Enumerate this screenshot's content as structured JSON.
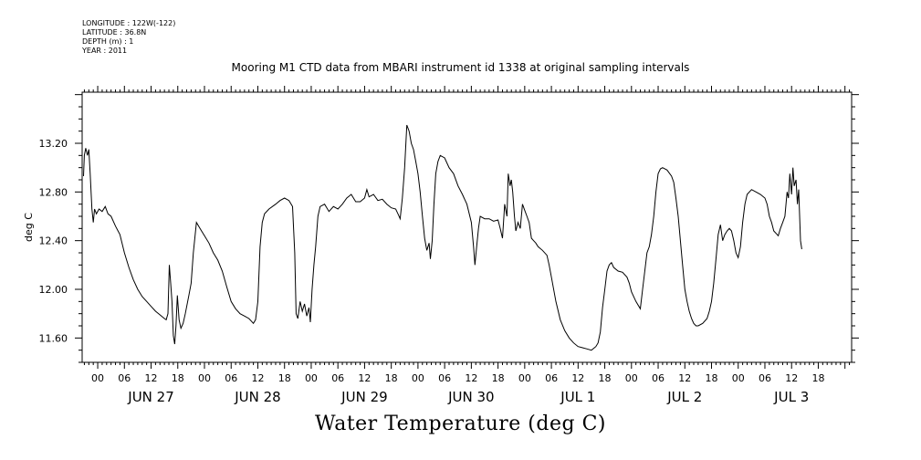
{
  "meta": {
    "longitude": "LONGITUDE : 122W(-122)",
    "latitude": "LATITUDE : 36.8N",
    "depth": "DEPTH (m) : 1",
    "year": "YEAR : 2011"
  },
  "chart_data": {
    "type": "line",
    "title": "Mooring M1 CTD data from MBARI instrument id 1338 at original sampling intervals",
    "bottom_title": "Water Temperature (deg C)",
    "ylabel": "deg C",
    "xlabel": "",
    "ylim": [
      11.4,
      13.62
    ],
    "y_ticks": [
      "11.60",
      "12.00",
      "12.40",
      "12.80",
      "13.20"
    ],
    "x_start_hours": -3.5,
    "x_end_hours": 169.5,
    "hour_labels": [
      "00",
      "06",
      "12",
      "18",
      "00",
      "06",
      "12",
      "18",
      "00",
      "06",
      "12",
      "18",
      "00",
      "06",
      "12",
      "18",
      "00",
      "06",
      "12",
      "18",
      "00",
      "06",
      "12",
      "18",
      "00",
      "06",
      "12",
      "18"
    ],
    "day_labels": [
      "JUN 27",
      "JUN 28",
      "JUN 29",
      "JUN 30",
      "JUL  1",
      "JUL  2",
      "JUL  3"
    ],
    "grid": false,
    "series": [
      {
        "color": "#000000",
        "points": [
          [
            -3.2,
            12.93
          ],
          [
            -3.0,
            13.1
          ],
          [
            -2.7,
            13.16
          ],
          [
            -2.3,
            13.1
          ],
          [
            -2.0,
            13.15
          ],
          [
            -1.7,
            12.95
          ],
          [
            -1.3,
            12.66
          ],
          [
            -1.0,
            12.55
          ],
          [
            -0.7,
            12.66
          ],
          [
            -0.3,
            12.62
          ],
          [
            0.3,
            12.66
          ],
          [
            1.0,
            12.64
          ],
          [
            1.7,
            12.68
          ],
          [
            2.3,
            12.62
          ],
          [
            3.0,
            12.6
          ],
          [
            4.0,
            12.52
          ],
          [
            5.0,
            12.45
          ],
          [
            6.0,
            12.3
          ],
          [
            7.0,
            12.18
          ],
          [
            8.0,
            12.08
          ],
          [
            9.0,
            12.0
          ],
          [
            10.0,
            11.94
          ],
          [
            11.0,
            11.9
          ],
          [
            12.0,
            11.86
          ],
          [
            13.0,
            11.82
          ],
          [
            14.0,
            11.79
          ],
          [
            15.0,
            11.76
          ],
          [
            15.4,
            11.75
          ],
          [
            15.8,
            11.8
          ],
          [
            16.1,
            12.2
          ],
          [
            16.4,
            12.05
          ],
          [
            16.7,
            11.9
          ],
          [
            17.0,
            11.62
          ],
          [
            17.3,
            11.55
          ],
          [
            17.6,
            11.7
          ],
          [
            17.9,
            11.95
          ],
          [
            18.3,
            11.75
          ],
          [
            18.7,
            11.68
          ],
          [
            19.2,
            11.72
          ],
          [
            19.7,
            11.8
          ],
          [
            20.5,
            11.95
          ],
          [
            21.0,
            12.05
          ],
          [
            21.5,
            12.3
          ],
          [
            22.2,
            12.55
          ],
          [
            23.0,
            12.5
          ],
          [
            24.0,
            12.44
          ],
          [
            25.0,
            12.38
          ],
          [
            26.0,
            12.3
          ],
          [
            27.0,
            12.24
          ],
          [
            28.0,
            12.15
          ],
          [
            29.0,
            12.02
          ],
          [
            30.0,
            11.9
          ],
          [
            31.0,
            11.84
          ],
          [
            32.0,
            11.8
          ],
          [
            33.0,
            11.78
          ],
          [
            34.0,
            11.76
          ],
          [
            34.5,
            11.74
          ],
          [
            35.0,
            11.72
          ],
          [
            35.5,
            11.75
          ],
          [
            36.0,
            11.9
          ],
          [
            36.5,
            12.35
          ],
          [
            37.0,
            12.55
          ],
          [
            37.5,
            12.62
          ],
          [
            38.5,
            12.66
          ],
          [
            40.0,
            12.7
          ],
          [
            41.0,
            12.73
          ],
          [
            42.0,
            12.75
          ],
          [
            43.0,
            12.73
          ],
          [
            43.8,
            12.68
          ],
          [
            44.3,
            12.3
          ],
          [
            44.6,
            11.8
          ],
          [
            45.0,
            11.76
          ],
          [
            45.5,
            11.9
          ],
          [
            46.0,
            11.82
          ],
          [
            46.5,
            11.88
          ],
          [
            47.0,
            11.78
          ],
          [
            47.5,
            11.85
          ],
          [
            47.8,
            11.73
          ],
          [
            48.2,
            12.0
          ],
          [
            48.6,
            12.2
          ],
          [
            49.0,
            12.35
          ],
          [
            49.5,
            12.6
          ],
          [
            50.0,
            12.68
          ],
          [
            51.0,
            12.7
          ],
          [
            52.0,
            12.64
          ],
          [
            53.0,
            12.68
          ],
          [
            54.0,
            12.66
          ],
          [
            55.0,
            12.7
          ],
          [
            56.0,
            12.75
          ],
          [
            57.0,
            12.78
          ],
          [
            58.0,
            12.72
          ],
          [
            59.0,
            12.72
          ],
          [
            60.0,
            12.75
          ],
          [
            60.5,
            12.82
          ],
          [
            61.0,
            12.76
          ],
          [
            62.0,
            12.78
          ],
          [
            63.0,
            12.73
          ],
          [
            64.0,
            12.74
          ],
          [
            65.0,
            12.7
          ],
          [
            66.0,
            12.67
          ],
          [
            67.0,
            12.66
          ],
          [
            67.5,
            12.62
          ],
          [
            68.0,
            12.58
          ],
          [
            68.5,
            12.75
          ],
          [
            69.0,
            13.0
          ],
          [
            69.5,
            13.35
          ],
          [
            70.0,
            13.3
          ],
          [
            70.5,
            13.2
          ],
          [
            71.0,
            13.15
          ],
          [
            71.5,
            13.05
          ],
          [
            72.0,
            12.95
          ],
          [
            72.5,
            12.8
          ],
          [
            73.0,
            12.6
          ],
          [
            73.5,
            12.42
          ],
          [
            74.0,
            12.32
          ],
          [
            74.5,
            12.38
          ],
          [
            74.8,
            12.25
          ],
          [
            75.2,
            12.4
          ],
          [
            75.6,
            12.7
          ],
          [
            76.0,
            12.95
          ],
          [
            76.5,
            13.05
          ],
          [
            77.0,
            13.1
          ],
          [
            78.0,
            13.08
          ],
          [
            79.0,
            13.0
          ],
          [
            80.0,
            12.95
          ],
          [
            81.0,
            12.85
          ],
          [
            82.0,
            12.78
          ],
          [
            83.0,
            12.7
          ],
          [
            84.0,
            12.55
          ],
          [
            84.5,
            12.35
          ],
          [
            84.8,
            12.2
          ],
          [
            85.2,
            12.35
          ],
          [
            85.6,
            12.5
          ],
          [
            86.0,
            12.6
          ],
          [
            87.0,
            12.58
          ],
          [
            88.0,
            12.58
          ],
          [
            89.0,
            12.56
          ],
          [
            90.0,
            12.57
          ],
          [
            90.5,
            12.5
          ],
          [
            91.0,
            12.42
          ],
          [
            91.5,
            12.7
          ],
          [
            92.0,
            12.6
          ],
          [
            92.3,
            12.95
          ],
          [
            92.7,
            12.85
          ],
          [
            93.0,
            12.9
          ],
          [
            93.3,
            12.8
          ],
          [
            93.7,
            12.6
          ],
          [
            94.0,
            12.48
          ],
          [
            94.5,
            12.55
          ],
          [
            95.0,
            12.5
          ],
          [
            95.5,
            12.7
          ],
          [
            96.0,
            12.65
          ],
          [
            96.5,
            12.6
          ],
          [
            97.0,
            12.55
          ],
          [
            97.5,
            12.42
          ],
          [
            98.0,
            12.4
          ],
          [
            98.5,
            12.38
          ],
          [
            99.0,
            12.35
          ],
          [
            100.0,
            12.32
          ],
          [
            101.0,
            12.28
          ],
          [
            101.5,
            12.2
          ],
          [
            102.0,
            12.1
          ],
          [
            103.0,
            11.9
          ],
          [
            104.0,
            11.75
          ],
          [
            105.0,
            11.66
          ],
          [
            106.0,
            11.6
          ],
          [
            107.0,
            11.56
          ],
          [
            108.0,
            11.53
          ],
          [
            109.0,
            11.52
          ],
          [
            110.0,
            11.51
          ],
          [
            111.0,
            11.5
          ],
          [
            112.0,
            11.53
          ],
          [
            112.5,
            11.56
          ],
          [
            113.0,
            11.65
          ],
          [
            113.5,
            11.85
          ],
          [
            114.0,
            12.0
          ],
          [
            114.5,
            12.15
          ],
          [
            115.0,
            12.2
          ],
          [
            115.5,
            12.22
          ],
          [
            116.0,
            12.18
          ],
          [
            117.0,
            12.15
          ],
          [
            118.0,
            12.14
          ],
          [
            119.0,
            12.1
          ],
          [
            119.5,
            12.05
          ],
          [
            120.0,
            11.98
          ],
          [
            121.0,
            11.9
          ],
          [
            122.0,
            11.84
          ],
          [
            122.5,
            12.0
          ],
          [
            123.0,
            12.15
          ],
          [
            123.5,
            12.3
          ],
          [
            124.0,
            12.35
          ],
          [
            124.5,
            12.45
          ],
          [
            125.0,
            12.6
          ],
          [
            125.5,
            12.8
          ],
          [
            126.0,
            12.95
          ],
          [
            126.5,
            12.99
          ],
          [
            127.0,
            13.0
          ],
          [
            128.0,
            12.98
          ],
          [
            129.0,
            12.93
          ],
          [
            129.5,
            12.88
          ],
          [
            130.0,
            12.75
          ],
          [
            130.5,
            12.6
          ],
          [
            131.0,
            12.4
          ],
          [
            131.5,
            12.2
          ],
          [
            132.0,
            12.0
          ],
          [
            132.5,
            11.9
          ],
          [
            133.0,
            11.82
          ],
          [
            133.5,
            11.76
          ],
          [
            134.0,
            11.72
          ],
          [
            134.5,
            11.7
          ],
          [
            135.0,
            11.7
          ],
          [
            136.0,
            11.72
          ],
          [
            137.0,
            11.76
          ],
          [
            137.5,
            11.82
          ],
          [
            138.0,
            11.9
          ],
          [
            138.5,
            12.05
          ],
          [
            139.0,
            12.25
          ],
          [
            139.5,
            12.45
          ],
          [
            140.0,
            12.53
          ],
          [
            140.5,
            12.4
          ],
          [
            141.0,
            12.45
          ],
          [
            141.5,
            12.48
          ],
          [
            142.0,
            12.5
          ],
          [
            142.5,
            12.48
          ],
          [
            143.0,
            12.4
          ],
          [
            143.5,
            12.3
          ],
          [
            144.0,
            12.26
          ],
          [
            144.5,
            12.35
          ],
          [
            145.0,
            12.55
          ],
          [
            145.5,
            12.7
          ],
          [
            146.0,
            12.78
          ],
          [
            147.0,
            12.82
          ],
          [
            148.0,
            12.8
          ],
          [
            149.0,
            12.78
          ],
          [
            150.0,
            12.75
          ],
          [
            150.5,
            12.7
          ],
          [
            151.0,
            12.6
          ],
          [
            151.5,
            12.55
          ],
          [
            152.0,
            12.48
          ],
          [
            152.5,
            12.46
          ],
          [
            153.0,
            12.44
          ],
          [
            153.5,
            12.5
          ],
          [
            154.0,
            12.55
          ],
          [
            154.5,
            12.6
          ],
          [
            155.0,
            12.8
          ],
          [
            155.3,
            12.75
          ],
          [
            155.6,
            12.95
          ],
          [
            156.0,
            12.78
          ],
          [
            156.3,
            13.0
          ],
          [
            156.6,
            12.85
          ],
          [
            157.0,
            12.9
          ],
          [
            157.3,
            12.7
          ],
          [
            157.6,
            12.82
          ],
          [
            158.0,
            12.4
          ],
          [
            158.3,
            12.33
          ]
        ]
      }
    ]
  }
}
